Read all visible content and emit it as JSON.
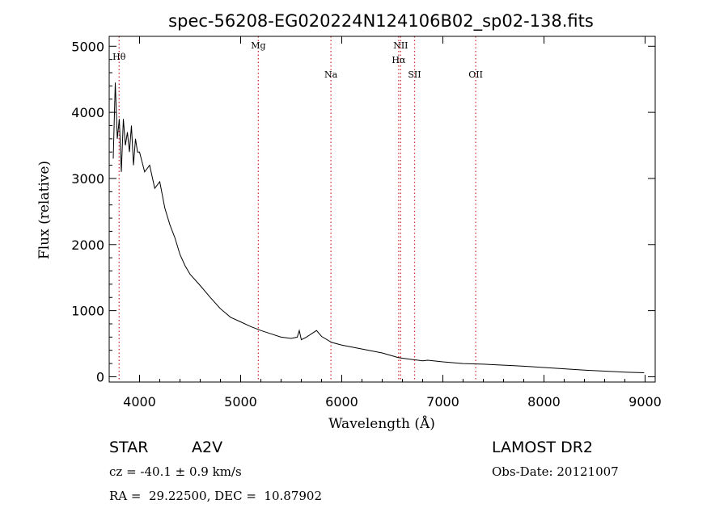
{
  "chart_data": {
    "type": "line",
    "title": "spec-56208-EG020224N124106B02_sp02-138.fits",
    "xlabel": "Wavelength (Å)",
    "ylabel": "Flux (relative)",
    "xlim": [
      3700,
      9100
    ],
    "ylim": [
      -80,
      5150
    ],
    "xticks": [
      4000,
      5000,
      6000,
      7000,
      8000,
      9000
    ],
    "yticks": [
      0,
      1000,
      2000,
      3000,
      4000,
      5000
    ],
    "grid": false,
    "series": [
      {
        "x": [
          3740,
          3760,
          3780,
          3800,
          3820,
          3840,
          3860,
          3880,
          3900,
          3920,
          3940,
          3960,
          3980,
          4000,
          4050,
          4100,
          4150,
          4200,
          4250,
          4300,
          4350,
          4400,
          4450,
          4500,
          4600,
          4700,
          4800,
          4900,
          5000,
          5100,
          5200,
          5300,
          5400,
          5500,
          5560,
          5580,
          5600,
          5650,
          5700,
          5750,
          5800,
          5900,
          6000,
          6200,
          6400,
          6560,
          6600,
          6800,
          6850,
          7000,
          7200,
          7400,
          7600,
          7800,
          8000,
          8200,
          8400,
          8600,
          8800,
          8990
        ],
        "y": [
          3300,
          4450,
          3600,
          3900,
          3100,
          3900,
          3500,
          3700,
          3400,
          3800,
          3200,
          3600,
          3400,
          3400,
          3100,
          3200,
          2850,
          2950,
          2550,
          2300,
          2100,
          1850,
          1680,
          1550,
          1380,
          1200,
          1030,
          900,
          830,
          760,
          700,
          650,
          600,
          580,
          600,
          700,
          560,
          600,
          650,
          700,
          610,
          520,
          480,
          420,
          360,
          290,
          280,
          240,
          250,
          225,
          200,
          190,
          175,
          160,
          140,
          120,
          100,
          85,
          70,
          60
        ]
      }
    ],
    "line_markers": [
      {
        "label": "Hθ",
        "x": 3798
      },
      {
        "label": "Mg",
        "x": 5175
      },
      {
        "label": "Na",
        "x": 5893
      },
      {
        "label": "NII",
        "x": 6583
      },
      {
        "label": "Hα",
        "x": 6563
      },
      {
        "label": "SII",
        "x": 6720
      },
      {
        "label": "OII",
        "x": 7325
      }
    ],
    "marker_color": "#d0303a",
    "line_color": "#000000"
  },
  "info": {
    "object_type": "STAR",
    "subclass": "A2V",
    "survey": "LAMOST DR2",
    "cz": "cz = -40.1 ± 0.9 km/s",
    "obs_date": "Obs-Date: 20121007",
    "radec": "RA =  29.22500, DEC =  10.87902"
  }
}
